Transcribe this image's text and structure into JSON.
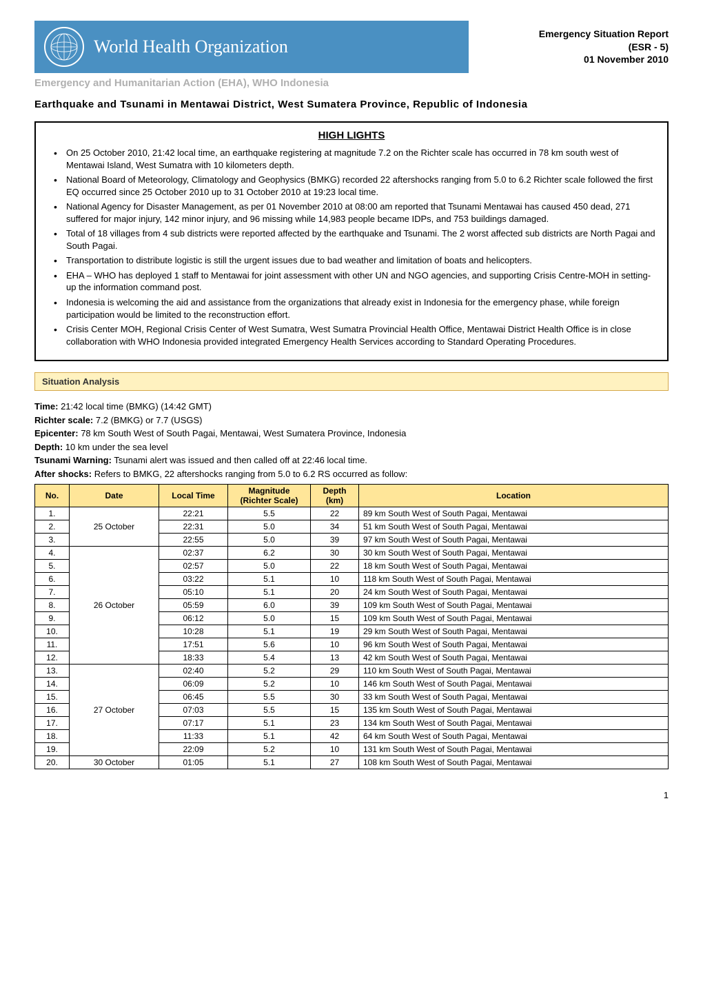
{
  "header": {
    "org_name": "World Health Organization",
    "esr_line1": "Emergency Situation Report",
    "esr_line2": "(ESR - 5)",
    "esr_line3": "01 November 2010"
  },
  "subheader": "Emergency and Humanitarian Action (EHA), WHO Indonesia",
  "doc_title": "Earthquake and Tsunami in Mentawai District, West Sumatera Province, Republic of Indonesia",
  "highlights_title": "HIGH LIGHTS",
  "highlights": [
    "On 25 October 2010, 21:42 local time, an earthquake registering at magnitude 7.2 on the Richter scale has occurred in 78 km south west of Mentawai Island, West Sumatra with 10 kilometers depth.",
    "National Board of Meteorology, Climatology and Geophysics (BMKG) recorded 22 aftershocks ranging from 5.0 to 6.2 Richter scale followed the first EQ occurred since 25 October 2010 up to 31 October 2010 at 19:23 local time.",
    "National Agency for Disaster Management, as per 01 November 2010 at 08:00 am reported that Tsunami Mentawai has caused 450 dead, 271 suffered for major injury, 142 minor injury, and 96 missing while 14,983 people became IDPs, and 753 buildings damaged.",
    "Total of 18 villages from 4 sub districts were reported affected by the earthquake and Tsunami. The 2 worst affected sub districts are North Pagai and South Pagai.",
    "Transportation to distribute logistic is still the urgent issues due to bad weather and limitation of boats and helicopters.",
    "EHA – WHO has deployed 1 staff to Mentawai for joint assessment with other UN and NGO agencies, and supporting Crisis Centre-MOH in setting-up the information command post.",
    "Indonesia is welcoming the aid and assistance from the organizations that already exist in Indonesia for the emergency phase, while foreign participation would be limited to the reconstruction effort.",
    "Crisis Center MOH, Regional Crisis Center of West Sumatra, West Sumatra Provincial Health Office, Mentawai District Health Office is in close collaboration with WHO Indonesia provided integrated Emergency Health Services according to Standard Operating Procedures."
  ],
  "situation_title": "Situation Analysis",
  "situation": {
    "time_label": "Time:",
    "time_val": "21:42 local time (BMKG) (14:42 GMT)",
    "richter_label": "Richter scale:",
    "richter_val": "7.2 (BMKG) or 7.7 (USGS)",
    "epicenter_label": "Epicenter:",
    "epicenter_val": "78 km South West of South Pagai, Mentawai, West Sumatera Province, Indonesia",
    "depth_label": "Depth:",
    "depth_val": "10 km under the sea level",
    "tsunami_label": "Tsunami Warning:",
    "tsunami_val": "Tsunami alert was issued and then called off at 22:46 local time.",
    "aftershocks_label": "After shocks:",
    "aftershocks_val": "Refers to BMKG, 22 aftershocks ranging from 5.0 to 6.2 RS occurred as follow:"
  },
  "table": {
    "headers": {
      "no": "No.",
      "date": "Date",
      "time": "Local Time",
      "mag1": "Magnitude",
      "mag2": "(Richter Scale)",
      "depth1": "Depth",
      "depth2": "(km)",
      "loc": "Location"
    },
    "header_bg": "#ffe699",
    "border_color": "#000000",
    "font_size": 12,
    "date_groups": [
      {
        "date": "25 October",
        "rows": [
          {
            "no": "1.",
            "time": "22:21",
            "mag": "5.5",
            "depth": "22",
            "loc": "89 km South West of South Pagai, Mentawai"
          },
          {
            "no": "2.",
            "time": "22:31",
            "mag": "5.0",
            "depth": "34",
            "loc": "51 km South West of  South Pagai, Mentawai"
          },
          {
            "no": "3.",
            "time": "22:55",
            "mag": "5.0",
            "depth": "39",
            "loc": "97 km South West of  South Pagai, Mentawai"
          }
        ]
      },
      {
        "date": "26 October",
        "rows": [
          {
            "no": "4.",
            "time": "02:37",
            "mag": "6.2",
            "depth": "30",
            "loc": "30 km South West of  South Pagai, Mentawai"
          },
          {
            "no": "5.",
            "time": "02:57",
            "mag": "5.0",
            "depth": "22",
            "loc": "18 km South West of  South Pagai, Mentawai"
          },
          {
            "no": "6.",
            "time": "03:22",
            "mag": "5.1",
            "depth": "10",
            "loc": "118 km South West of  South Pagai, Mentawai"
          },
          {
            "no": "7.",
            "time": "05:10",
            "mag": "5.1",
            "depth": "20",
            "loc": "24 km South West of  South Pagai, Mentawai"
          },
          {
            "no": "8.",
            "time": "05:59",
            "mag": "6.0",
            "depth": "39",
            "loc": "109 km South West of  South Pagai, Mentawai"
          },
          {
            "no": "9.",
            "time": "06:12",
            "mag": "5.0",
            "depth": "15",
            "loc": "109 km South West of  South Pagai, Mentawai"
          },
          {
            "no": "10.",
            "time": "10:28",
            "mag": "5.1",
            "depth": "19",
            "loc": "29 km South West of South Pagai,  Mentawai"
          },
          {
            "no": "11.",
            "time": "17:51",
            "mag": "5.6",
            "depth": "10",
            "loc": "96  km South West of South Pagai, Mentawai"
          },
          {
            "no": "12.",
            "time": "18:33",
            "mag": "5.4",
            "depth": "13",
            "loc": "42 km South West of South Pagai, Mentawai"
          }
        ]
      },
      {
        "date": "27 October",
        "rows": [
          {
            "no": "13.",
            "time": "02:40",
            "mag": "5.2",
            "depth": "29",
            "loc": "110 km South West of South Pagai, Mentawai"
          },
          {
            "no": "14.",
            "time": "06:09",
            "mag": "5.2",
            "depth": "10",
            "loc": "146 km South West of South Pagai, Mentawai"
          },
          {
            "no": "15.",
            "time": "06:45",
            "mag": "5.5",
            "depth": "30",
            "loc": "33 km South West of South Pagai, Mentawai"
          },
          {
            "no": "16.",
            "time": "07:03",
            "mag": "5.5",
            "depth": "15",
            "loc": "135 km South West of  South Pagai, Mentawai"
          },
          {
            "no": "17.",
            "time": "07:17",
            "mag": "5.1",
            "depth": "23",
            "loc": "134 km South West of  South Pagai, Mentawai"
          },
          {
            "no": "18.",
            "time": "11:33",
            "mag": "5.1",
            "depth": "42",
            "loc": "64 km South West of  South Pagai, Mentawai"
          },
          {
            "no": "19.",
            "time": "22:09",
            "mag": "5.2",
            "depth": "10",
            "loc": "131 km South West of  South Pagai, Mentawai"
          }
        ]
      },
      {
        "date": "30 October",
        "rows": [
          {
            "no": "20.",
            "time": "01:05",
            "mag": "5.1",
            "depth": "27",
            "loc": "108 km South West of  South Pagai, Mentawai"
          }
        ]
      }
    ]
  },
  "page_number": "1",
  "colors": {
    "banner_bg": "#4a90c2",
    "banner_text": "#ffffff",
    "subheader_text": "#b0b0b0",
    "section_bar_bg": "#fff2c0",
    "section_bar_border": "#d4a84a"
  }
}
